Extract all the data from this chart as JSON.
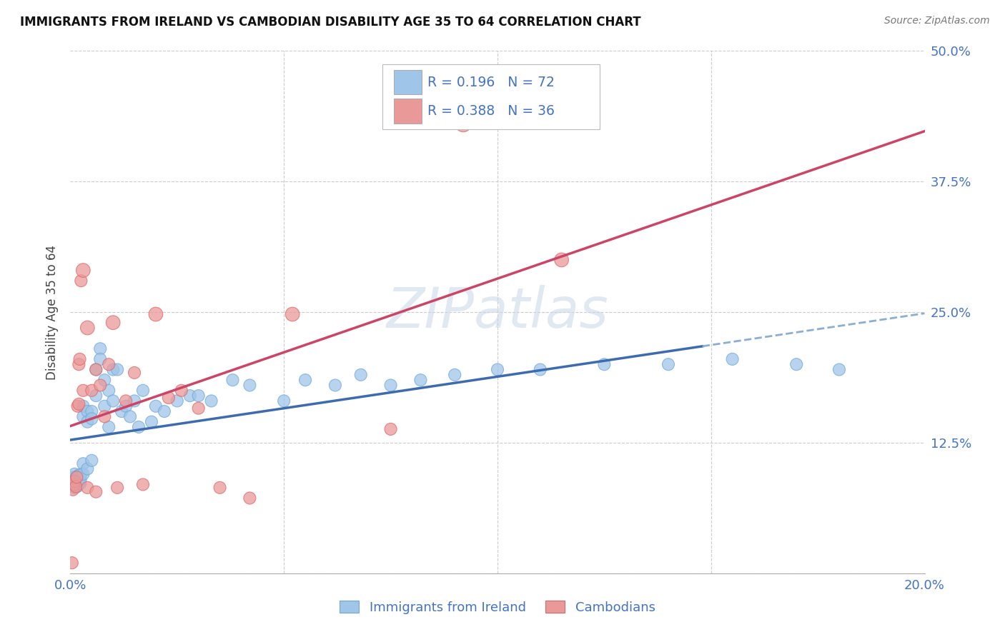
{
  "title": "IMMIGRANTS FROM IRELAND VS CAMBODIAN DISABILITY AGE 35 TO 64 CORRELATION CHART",
  "source": "Source: ZipAtlas.com",
  "label_color": "#4472c4",
  "ylabel": "Disability Age 35 to 64",
  "xlim": [
    0.0,
    0.2
  ],
  "ylim": [
    0.0,
    0.5
  ],
  "xticks": [
    0.0,
    0.05,
    0.1,
    0.15,
    0.2
  ],
  "xtick_labels": [
    "0.0%",
    "",
    "",
    "",
    "20.0%"
  ],
  "yticks": [
    0.0,
    0.125,
    0.25,
    0.375,
    0.5
  ],
  "ytick_labels": [
    "",
    "12.5%",
    "25.0%",
    "37.5%",
    "50.0%"
  ],
  "blue_R": "0.196",
  "blue_N": "72",
  "pink_R": "0.388",
  "pink_N": "36",
  "blue_color": "#9fc5e8",
  "pink_color": "#ea9999",
  "blue_edge_color": "#6fa8dc",
  "pink_edge_color": "#e06666",
  "blue_line_color": "#3d6baf",
  "pink_line_color": "#cc4466",
  "blue_line_dash_color": "#8bafd4",
  "watermark_text": "ZIPatlas",
  "ireland_x": [
    0.0003,
    0.0005,
    0.0006,
    0.0008,
    0.0009,
    0.001,
    0.001,
    0.0012,
    0.0013,
    0.0014,
    0.0015,
    0.0016,
    0.0017,
    0.0018,
    0.0019,
    0.002,
    0.002,
    0.0021,
    0.0022,
    0.0023,
    0.0024,
    0.0025,
    0.003,
    0.003,
    0.003,
    0.003,
    0.004,
    0.004,
    0.004,
    0.005,
    0.005,
    0.005,
    0.006,
    0.006,
    0.007,
    0.007,
    0.008,
    0.008,
    0.009,
    0.009,
    0.01,
    0.01,
    0.011,
    0.012,
    0.013,
    0.014,
    0.015,
    0.016,
    0.017,
    0.019,
    0.02,
    0.022,
    0.025,
    0.028,
    0.03,
    0.033,
    0.038,
    0.042,
    0.05,
    0.055,
    0.062,
    0.068,
    0.075,
    0.082,
    0.09,
    0.1,
    0.11,
    0.125,
    0.14,
    0.155,
    0.17,
    0.18
  ],
  "ireland_y": [
    0.09,
    0.085,
    0.092,
    0.088,
    0.082,
    0.086,
    0.095,
    0.09,
    0.085,
    0.092,
    0.088,
    0.083,
    0.091,
    0.086,
    0.093,
    0.089,
    0.094,
    0.087,
    0.092,
    0.086,
    0.09,
    0.095,
    0.15,
    0.16,
    0.105,
    0.095,
    0.155,
    0.145,
    0.1,
    0.155,
    0.148,
    0.108,
    0.195,
    0.17,
    0.215,
    0.205,
    0.185,
    0.16,
    0.175,
    0.14,
    0.195,
    0.165,
    0.195,
    0.155,
    0.16,
    0.15,
    0.165,
    0.14,
    0.175,
    0.145,
    0.16,
    0.155,
    0.165,
    0.17,
    0.17,
    0.165,
    0.185,
    0.18,
    0.165,
    0.185,
    0.18,
    0.19,
    0.18,
    0.185,
    0.19,
    0.195,
    0.195,
    0.2,
    0.2,
    0.205,
    0.2,
    0.195
  ],
  "ireland_s": [
    200,
    150,
    150,
    150,
    150,
    150,
    150,
    150,
    150,
    150,
    150,
    150,
    150,
    150,
    150,
    150,
    150,
    150,
    150,
    150,
    150,
    150,
    150,
    150,
    150,
    150,
    150,
    150,
    150,
    150,
    150,
    150,
    150,
    150,
    150,
    150,
    150,
    150,
    150,
    150,
    150,
    150,
    150,
    150,
    150,
    150,
    150,
    150,
    150,
    150,
    150,
    150,
    150,
    150,
    150,
    150,
    150,
    150,
    150,
    150,
    150,
    150,
    150,
    150,
    150,
    150,
    150,
    150,
    150,
    150,
    150,
    150
  ],
  "cambodian_x": [
    0.0004,
    0.0006,
    0.0009,
    0.001,
    0.0013,
    0.0015,
    0.0017,
    0.002,
    0.002,
    0.0022,
    0.0025,
    0.003,
    0.003,
    0.004,
    0.004,
    0.005,
    0.006,
    0.006,
    0.007,
    0.008,
    0.009,
    0.01,
    0.011,
    0.013,
    0.015,
    0.017,
    0.02,
    0.023,
    0.026,
    0.03,
    0.035,
    0.042,
    0.052,
    0.075,
    0.092,
    0.115
  ],
  "cambodian_y": [
    0.01,
    0.08,
    0.085,
    0.088,
    0.083,
    0.092,
    0.16,
    0.162,
    0.2,
    0.205,
    0.28,
    0.29,
    0.175,
    0.235,
    0.082,
    0.175,
    0.195,
    0.078,
    0.18,
    0.15,
    0.2,
    0.24,
    0.082,
    0.165,
    0.192,
    0.085,
    0.248,
    0.168,
    0.175,
    0.158,
    0.082,
    0.072,
    0.248,
    0.138,
    0.43,
    0.3
  ],
  "cambodian_s": [
    150,
    150,
    150,
    150,
    150,
    150,
    150,
    150,
    150,
    150,
    150,
    200,
    150,
    200,
    150,
    150,
    150,
    150,
    150,
    150,
    150,
    200,
    150,
    150,
    150,
    150,
    200,
    150,
    150,
    150,
    150,
    150,
    200,
    150,
    250,
    200
  ]
}
